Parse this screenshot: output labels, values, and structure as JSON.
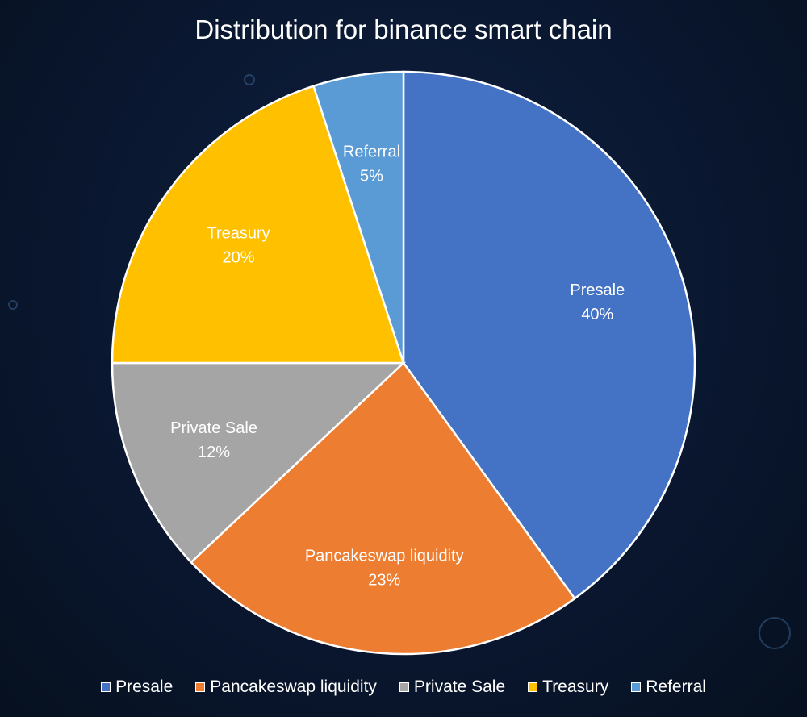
{
  "chart_data": {
    "type": "pie",
    "title": "Distribution for binance smart chain",
    "categories": [
      "Presale",
      "Pancakeswap liquidity",
      "Private Sale",
      "Treasury",
      "Referral"
    ],
    "values": [
      40,
      23,
      12,
      20,
      5
    ],
    "value_labels": [
      "40%",
      "23%",
      "12%",
      "20%",
      "5%"
    ],
    "colors": [
      "#4472C4",
      "#ED7D31",
      "#A5A5A5",
      "#FFC000",
      "#5B9BD5"
    ],
    "start_angle": "12 o'clock, clockwise",
    "legend_position": "bottom",
    "data_labels": "inside, category name and percent"
  }
}
